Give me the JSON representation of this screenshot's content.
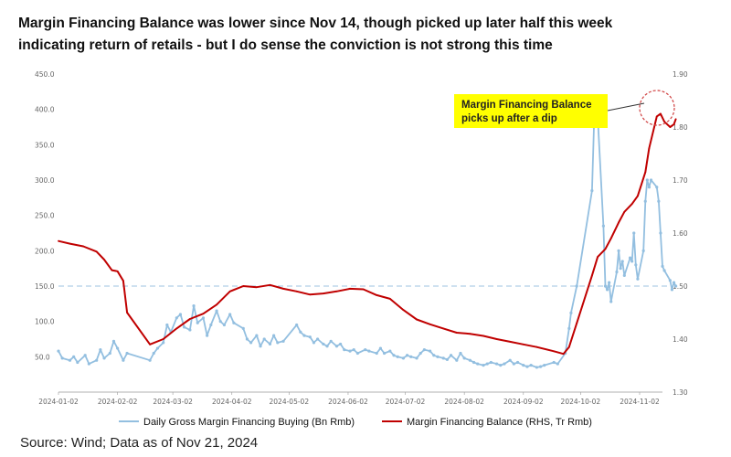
{
  "title_line1": "Margin Financing Balance was lower since Nov 14, though picked up later half this week",
  "title_line2": "indicating return of retails - but I do sense the conviction is not strong this time",
  "source": "Source: Wind; Data as of Nov 21, 2024",
  "chart_data": {
    "type": "line",
    "title": "",
    "xlabel": "",
    "ylabel": "",
    "x_ticks": [
      "2024-01-02",
      "2024-02-02",
      "2024-03-02",
      "2024-04-02",
      "2024-05-02",
      "2024-06-02",
      "2024-07-02",
      "2024-08-02",
      "2024-09-02",
      "2024-10-02",
      "2024-11-02"
    ],
    "y_left_ticks": [
      "50.0",
      "100.0",
      "150.0",
      "200.0",
      "250.0",
      "300.0",
      "350.0",
      "400.0",
      "450.0"
    ],
    "y_right_ticks": [
      "1.30",
      "1.40",
      "1.50",
      "1.60",
      "1.70",
      "1.80",
      "1.90"
    ],
    "ylim_left": [
      0,
      450
    ],
    "ylim_right": [
      1.3,
      1.9
    ],
    "reference_line": {
      "axis": "left",
      "value": 150
    },
    "grid": false,
    "legend_position": "bottom",
    "annotation": {
      "line1": "Margin Financing Balance",
      "line2": "picks up after a dip",
      "date": "2024-11-14"
    },
    "series": [
      {
        "name": "Daily Gross Margin Financing Buying (Bn Rmb)",
        "axis": "left",
        "color": "#93bfe0",
        "points": [
          [
            "2024-01-02",
            58
          ],
          [
            "2024-01-04",
            48
          ],
          [
            "2024-01-08",
            45
          ],
          [
            "2024-01-10",
            50
          ],
          [
            "2024-01-12",
            42
          ],
          [
            "2024-01-16",
            52
          ],
          [
            "2024-01-18",
            40
          ],
          [
            "2024-01-22",
            45
          ],
          [
            "2024-01-24",
            60
          ],
          [
            "2024-01-26",
            48
          ],
          [
            "2024-01-29",
            55
          ],
          [
            "2024-01-31",
            72
          ],
          [
            "2024-02-02",
            62
          ],
          [
            "2024-02-05",
            45
          ],
          [
            "2024-02-07",
            55
          ],
          [
            "2024-02-19",
            45
          ],
          [
            "2024-02-21",
            55
          ],
          [
            "2024-02-23",
            62
          ],
          [
            "2024-02-26",
            70
          ],
          [
            "2024-02-28",
            95
          ],
          [
            "2024-03-01",
            85
          ],
          [
            "2024-03-04",
            105
          ],
          [
            "2024-03-06",
            110
          ],
          [
            "2024-03-08",
            92
          ],
          [
            "2024-03-11",
            88
          ],
          [
            "2024-03-13",
            122
          ],
          [
            "2024-03-15",
            98
          ],
          [
            "2024-03-18",
            105
          ],
          [
            "2024-03-20",
            80
          ],
          [
            "2024-03-22",
            95
          ],
          [
            "2024-03-25",
            115
          ],
          [
            "2024-03-27",
            100
          ],
          [
            "2024-03-29",
            95
          ],
          [
            "2024-04-01",
            110
          ],
          [
            "2024-04-03",
            98
          ],
          [
            "2024-04-08",
            90
          ],
          [
            "2024-04-10",
            75
          ],
          [
            "2024-04-12",
            70
          ],
          [
            "2024-04-15",
            80
          ],
          [
            "2024-04-17",
            65
          ],
          [
            "2024-04-19",
            75
          ],
          [
            "2024-04-22",
            68
          ],
          [
            "2024-04-24",
            80
          ],
          [
            "2024-04-26",
            70
          ],
          [
            "2024-04-29",
            72
          ],
          [
            "2024-05-06",
            95
          ],
          [
            "2024-05-08",
            85
          ],
          [
            "2024-05-10",
            80
          ],
          [
            "2024-05-13",
            78
          ],
          [
            "2024-05-15",
            70
          ],
          [
            "2024-05-17",
            75
          ],
          [
            "2024-05-20",
            68
          ],
          [
            "2024-05-22",
            65
          ],
          [
            "2024-05-24",
            72
          ],
          [
            "2024-05-27",
            65
          ],
          [
            "2024-05-29",
            68
          ],
          [
            "2024-05-31",
            60
          ],
          [
            "2024-06-03",
            58
          ],
          [
            "2024-06-05",
            60
          ],
          [
            "2024-06-07",
            55
          ],
          [
            "2024-06-11",
            60
          ],
          [
            "2024-06-13",
            58
          ],
          [
            "2024-06-17",
            55
          ],
          [
            "2024-06-19",
            62
          ],
          [
            "2024-06-21",
            55
          ],
          [
            "2024-06-24",
            58
          ],
          [
            "2024-06-26",
            52
          ],
          [
            "2024-06-28",
            50
          ],
          [
            "2024-07-01",
            48
          ],
          [
            "2024-07-03",
            52
          ],
          [
            "2024-07-05",
            50
          ],
          [
            "2024-07-08",
            48
          ],
          [
            "2024-07-10",
            55
          ],
          [
            "2024-07-12",
            60
          ],
          [
            "2024-07-15",
            58
          ],
          [
            "2024-07-17",
            52
          ],
          [
            "2024-07-19",
            50
          ],
          [
            "2024-07-22",
            48
          ],
          [
            "2024-07-24",
            46
          ],
          [
            "2024-07-26",
            52
          ],
          [
            "2024-07-29",
            45
          ],
          [
            "2024-07-31",
            55
          ],
          [
            "2024-08-02",
            48
          ],
          [
            "2024-08-05",
            45
          ],
          [
            "2024-08-07",
            42
          ],
          [
            "2024-08-09",
            40
          ],
          [
            "2024-08-12",
            38
          ],
          [
            "2024-08-14",
            40
          ],
          [
            "2024-08-16",
            42
          ],
          [
            "2024-08-19",
            40
          ],
          [
            "2024-08-21",
            38
          ],
          [
            "2024-08-23",
            40
          ],
          [
            "2024-08-26",
            45
          ],
          [
            "2024-08-28",
            40
          ],
          [
            "2024-08-30",
            42
          ],
          [
            "2024-09-02",
            38
          ],
          [
            "2024-09-04",
            36
          ],
          [
            "2024-09-06",
            38
          ],
          [
            "2024-09-09",
            35
          ],
          [
            "2024-09-11",
            36
          ],
          [
            "2024-09-13",
            38
          ],
          [
            "2024-09-18",
            42
          ],
          [
            "2024-09-20",
            40
          ],
          [
            "2024-09-24",
            55
          ],
          [
            "2024-09-26",
            90
          ],
          [
            "2024-09-27",
            112
          ],
          [
            "2024-09-30",
            150
          ],
          [
            "2024-10-08",
            285
          ],
          [
            "2024-10-09",
            375
          ],
          [
            "2024-10-10",
            380
          ],
          [
            "2024-10-11",
            390
          ],
          [
            "2024-10-14",
            235
          ],
          [
            "2024-10-15",
            150
          ],
          [
            "2024-10-16",
            145
          ],
          [
            "2024-10-17",
            155
          ],
          [
            "2024-10-18",
            128
          ],
          [
            "2024-10-21",
            170
          ],
          [
            "2024-10-22",
            200
          ],
          [
            "2024-10-23",
            175
          ],
          [
            "2024-10-24",
            185
          ],
          [
            "2024-10-25",
            165
          ],
          [
            "2024-10-28",
            190
          ],
          [
            "2024-10-29",
            185
          ],
          [
            "2024-10-30",
            225
          ],
          [
            "2024-10-31",
            180
          ],
          [
            "2024-11-01",
            160
          ],
          [
            "2024-11-04",
            200
          ],
          [
            "2024-11-05",
            270
          ],
          [
            "2024-11-06",
            300
          ],
          [
            "2024-11-07",
            290
          ],
          [
            "2024-11-08",
            300
          ],
          [
            "2024-11-11",
            290
          ],
          [
            "2024-11-12",
            270
          ],
          [
            "2024-11-13",
            225
          ],
          [
            "2024-11-14",
            178
          ],
          [
            "2024-11-15",
            172
          ],
          [
            "2024-11-18",
            158
          ],
          [
            "2024-11-19",
            145
          ],
          [
            "2024-11-20",
            155
          ],
          [
            "2024-11-21",
            150
          ]
        ]
      },
      {
        "name": "Margin Financing Balance (RHS, Tr Rmb)",
        "axis": "right",
        "color": "#c00000",
        "points": [
          [
            "2024-01-02",
            1.585
          ],
          [
            "2024-01-08",
            1.58
          ],
          [
            "2024-01-15",
            1.575
          ],
          [
            "2024-01-22",
            1.565
          ],
          [
            "2024-01-26",
            1.55
          ],
          [
            "2024-01-30",
            1.53
          ],
          [
            "2024-02-02",
            1.528
          ],
          [
            "2024-02-05",
            1.51
          ],
          [
            "2024-02-07",
            1.45
          ],
          [
            "2024-02-19",
            1.39
          ],
          [
            "2024-02-26",
            1.4
          ],
          [
            "2024-03-04",
            1.42
          ],
          [
            "2024-03-11",
            1.438
          ],
          [
            "2024-03-18",
            1.448
          ],
          [
            "2024-03-25",
            1.465
          ],
          [
            "2024-04-01",
            1.49
          ],
          [
            "2024-04-08",
            1.5
          ],
          [
            "2024-04-15",
            1.498
          ],
          [
            "2024-04-22",
            1.502
          ],
          [
            "2024-04-29",
            1.495
          ],
          [
            "2024-05-06",
            1.49
          ],
          [
            "2024-05-13",
            1.484
          ],
          [
            "2024-05-20",
            1.486
          ],
          [
            "2024-05-27",
            1.49
          ],
          [
            "2024-06-03",
            1.495
          ],
          [
            "2024-06-10",
            1.494
          ],
          [
            "2024-06-17",
            1.483
          ],
          [
            "2024-06-24",
            1.476
          ],
          [
            "2024-07-01",
            1.455
          ],
          [
            "2024-07-08",
            1.437
          ],
          [
            "2024-07-15",
            1.428
          ],
          [
            "2024-07-22",
            1.42
          ],
          [
            "2024-07-29",
            1.412
          ],
          [
            "2024-08-05",
            1.41
          ],
          [
            "2024-08-12",
            1.406
          ],
          [
            "2024-08-19",
            1.4
          ],
          [
            "2024-08-26",
            1.395
          ],
          [
            "2024-09-02",
            1.39
          ],
          [
            "2024-09-09",
            1.385
          ],
          [
            "2024-09-18",
            1.377
          ],
          [
            "2024-09-23",
            1.372
          ],
          [
            "2024-09-26",
            1.385
          ],
          [
            "2024-09-30",
            1.43
          ],
          [
            "2024-10-08",
            1.52
          ],
          [
            "2024-10-11",
            1.555
          ],
          [
            "2024-10-15",
            1.57
          ],
          [
            "2024-10-18",
            1.59
          ],
          [
            "2024-10-22",
            1.62
          ],
          [
            "2024-10-25",
            1.64
          ],
          [
            "2024-10-29",
            1.655
          ],
          [
            "2024-11-01",
            1.67
          ],
          [
            "2024-11-05",
            1.715
          ],
          [
            "2024-11-07",
            1.76
          ],
          [
            "2024-11-11",
            1.82
          ],
          [
            "2024-11-13",
            1.825
          ],
          [
            "2024-11-15",
            1.81
          ],
          [
            "2024-11-18",
            1.8
          ],
          [
            "2024-11-20",
            1.805
          ],
          [
            "2024-11-21",
            1.815
          ]
        ]
      }
    ]
  }
}
